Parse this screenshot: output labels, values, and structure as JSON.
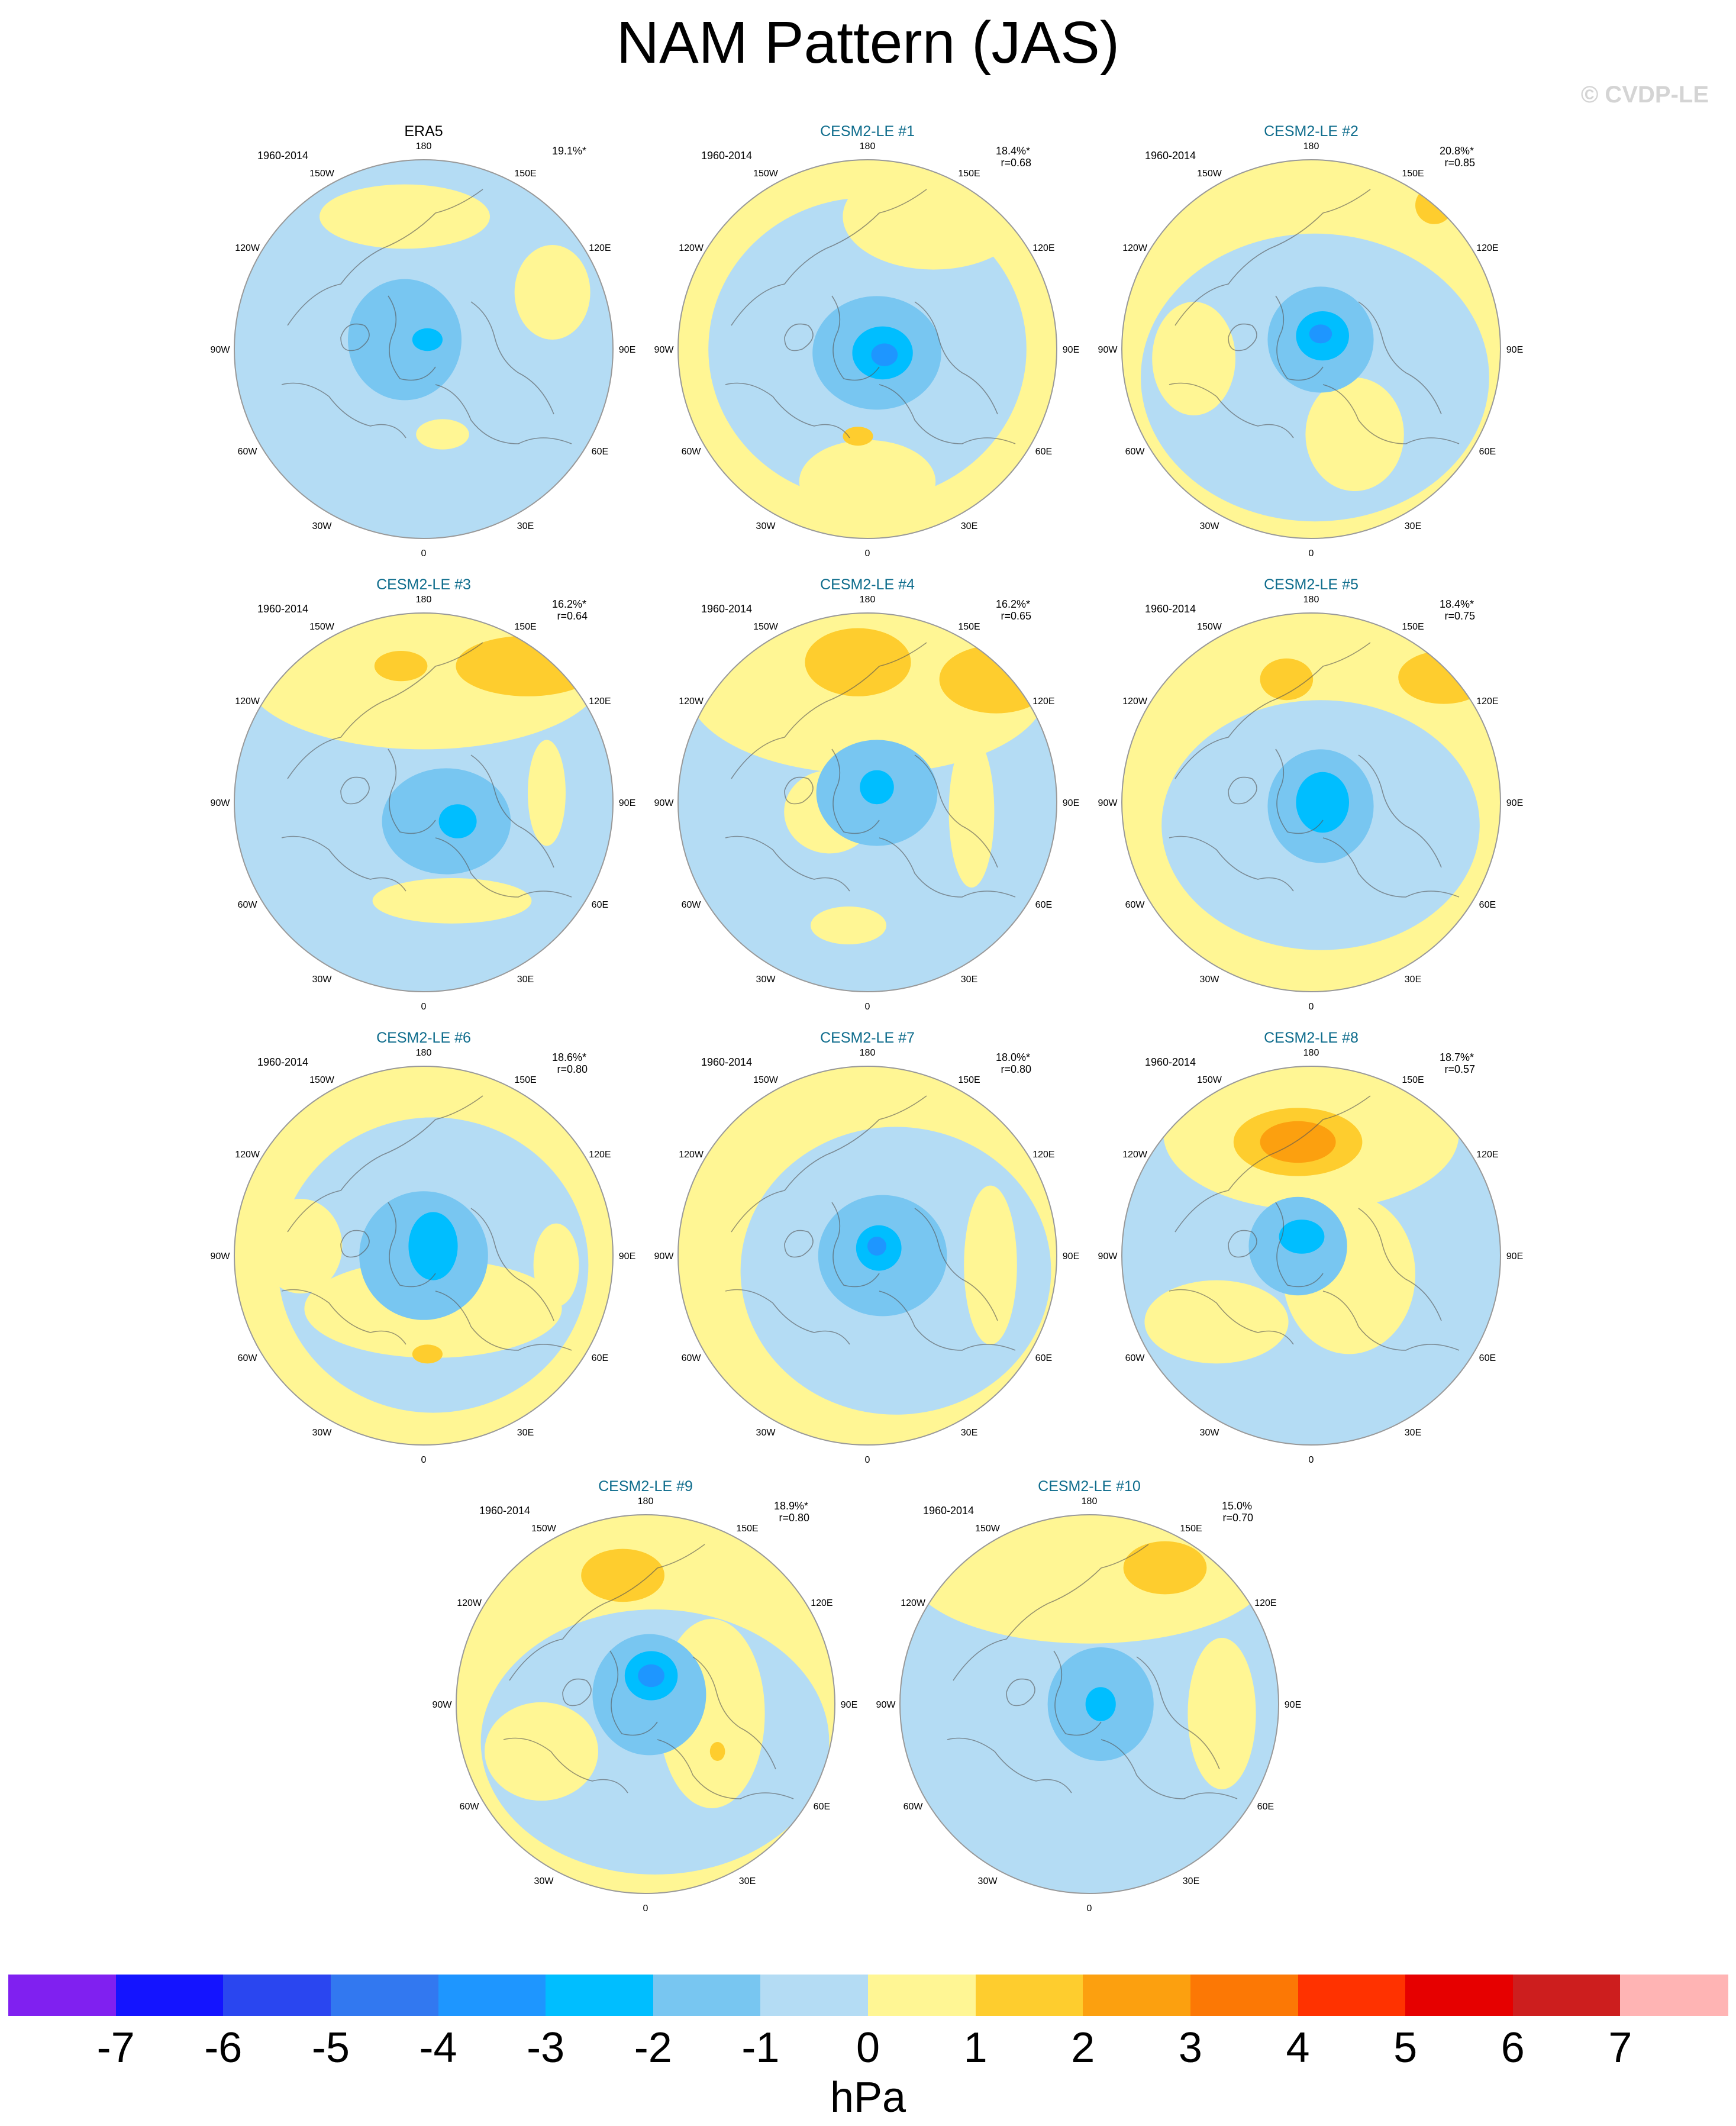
{
  "title": "NAM Pattern (JAS)",
  "watermark": "© CVDP-LE",
  "period": "1960-2014",
  "lon_labels": [
    "180",
    "150E",
    "120E",
    "90E",
    "60E",
    "30E",
    "0",
    "30W",
    "60W",
    "90W",
    "120W",
    "150W"
  ],
  "colors": {
    "ocean_neg1": "#b4dcf4",
    "neg2": "#78c6f1",
    "neg3": "#00beff",
    "neg4": "#1e96ff",
    "pos1": "#fff694",
    "pos2": "#fecd2e",
    "pos3": "#fca00f",
    "title_obs": "#000000",
    "title_model": "#0e6c8c"
  },
  "panels": [
    {
      "id": "era5",
      "title": "ERA5",
      "obs": true,
      "stats": [
        "19.1%*"
      ],
      "row": 0,
      "col": 0
    },
    {
      "id": "m1",
      "title": "CESM2-LE #1",
      "obs": false,
      "stats": [
        "18.4%*",
        "r=0.68"
      ],
      "row": 0,
      "col": 1
    },
    {
      "id": "m2",
      "title": "CESM2-LE #2",
      "obs": false,
      "stats": [
        "20.8%*",
        "r=0.85"
      ],
      "row": 0,
      "col": 2
    },
    {
      "id": "m3",
      "title": "CESM2-LE #3",
      "obs": false,
      "stats": [
        "16.2%*",
        "r=0.64"
      ],
      "row": 1,
      "col": 0
    },
    {
      "id": "m4",
      "title": "CESM2-LE #4",
      "obs": false,
      "stats": [
        "16.2%*",
        "r=0.65"
      ],
      "row": 1,
      "col": 1
    },
    {
      "id": "m5",
      "title": "CESM2-LE #5",
      "obs": false,
      "stats": [
        "18.4%*",
        "r=0.75"
      ],
      "row": 1,
      "col": 2
    },
    {
      "id": "m6",
      "title": "CESM2-LE #6",
      "obs": false,
      "stats": [
        "18.6%*",
        "r=0.80"
      ],
      "row": 2,
      "col": 0
    },
    {
      "id": "m7",
      "title": "CESM2-LE #7",
      "obs": false,
      "stats": [
        "18.0%*",
        "r=0.80"
      ],
      "row": 2,
      "col": 1
    },
    {
      "id": "m8",
      "title": "CESM2-LE #8",
      "obs": false,
      "stats": [
        "18.7%*",
        "r=0.57"
      ],
      "row": 2,
      "col": 2
    },
    {
      "id": "m9",
      "title": "CESM2-LE #9",
      "obs": false,
      "stats": [
        "18.9%*",
        "r=0.80"
      ],
      "row": 3,
      "col": 0.5
    },
    {
      "id": "m10",
      "title": "CESM2-LE #10",
      "obs": false,
      "stats": [
        "15.0%",
        "r=0.70"
      ],
      "row": 3,
      "col": 1.5
    }
  ],
  "colorbar": {
    "units": "hPa",
    "labels": [
      "-7",
      "-6",
      "-5",
      "-4",
      "-3",
      "-2",
      "-1",
      "0",
      "1",
      "2",
      "3",
      "4",
      "5",
      "6",
      "7"
    ],
    "colors": [
      "#8020f0",
      "#1414ff",
      "#2a46f0",
      "#3278f0",
      "#1e96ff",
      "#00beff",
      "#78c6f1",
      "#b4dcf4",
      "#fff694",
      "#fecd2e",
      "#fca00f",
      "#fc7805",
      "#ff3200",
      "#e60000",
      "#cd1e1e",
      "#ffb4b4"
    ]
  }
}
